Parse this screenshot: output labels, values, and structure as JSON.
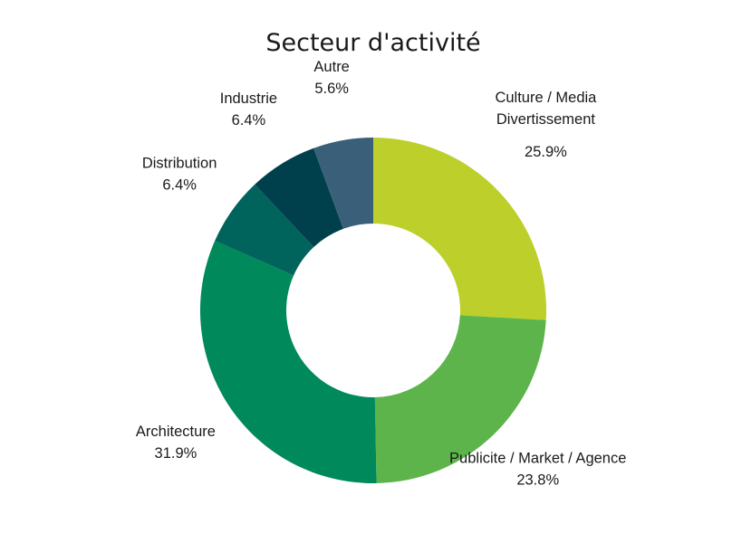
{
  "chart_data": {
    "type": "pie",
    "variant": "donut",
    "title": "Secteur d'activité",
    "start": "12 o'clock",
    "direction": "clockwise",
    "slices": [
      {
        "label": [
          "Culture / Media",
          "Divertissement"
        ],
        "value": 25.9,
        "value_label": "25.9%",
        "color": "#bccf2a"
      },
      {
        "label": [
          "Publicite / Market / Agence"
        ],
        "value": 23.8,
        "value_label": "23.8%",
        "color": "#5cb44a"
      },
      {
        "label": [
          "Architecture"
        ],
        "value": 31.9,
        "value_label": "31.9%",
        "color": "#00895a"
      },
      {
        "label": [
          "Distribution"
        ],
        "value": 6.4,
        "value_label": "6.4%",
        "color": "#00635c"
      },
      {
        "label": [
          "Industrie"
        ],
        "value": 6.4,
        "value_label": "6.4%",
        "color": "#003f4c"
      },
      {
        "label": [
          "Autre"
        ],
        "value": 5.6,
        "value_label": "5.6%",
        "color": "#3a5f78"
      }
    ]
  }
}
